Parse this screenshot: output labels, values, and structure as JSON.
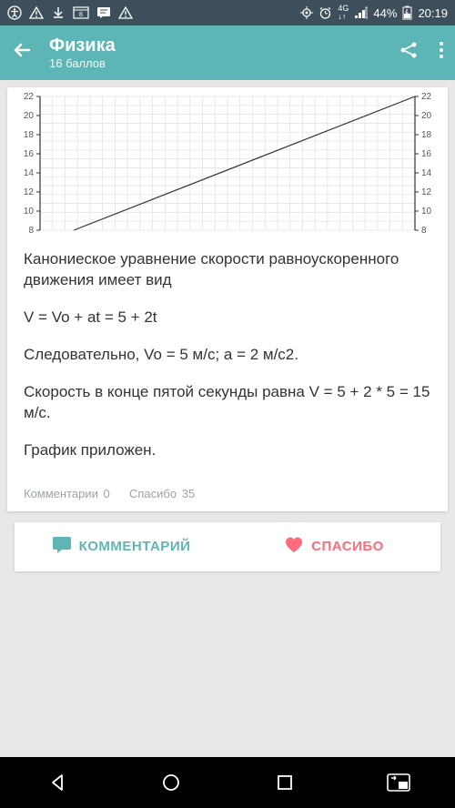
{
  "status": {
    "battery": "44%",
    "time": "20:19",
    "network": "4G"
  },
  "header": {
    "title": "Физика",
    "subtitle": "16 баллов"
  },
  "chart": {
    "type": "line",
    "ylim": [
      8,
      22
    ],
    "yticks_left": [
      22,
      20,
      18,
      16,
      14,
      12,
      10,
      8
    ],
    "yticks_right": [
      22,
      20,
      18,
      16,
      14,
      12,
      10,
      8
    ],
    "line_start": [
      0.09,
      8
    ],
    "line_end": [
      1.0,
      22
    ],
    "grid_color": "#e0e0e0",
    "axis_color": "#333333",
    "line_color": "#333333",
    "background": "#ffffff",
    "tick_fontsize": 10,
    "tick_color": "#555555"
  },
  "answer": {
    "p1": "Канониеское уравнение скорости равноускоренного движения имеет вид",
    "p2": "V = Vo + at = 5 + 2t",
    "p3": "Следовательно, Vo = 5 м/с; a = 2 м/с2.",
    "p4": "Скорость в конце пятой секунды равна V = 5 + 2 * 5 = 15 м/с.",
    "p5": "График приложен."
  },
  "meta": {
    "comments_label": "Комментарии",
    "comments_count": "0",
    "thanks_label": "Спасибо",
    "thanks_count": "35"
  },
  "actions": {
    "comment": "КОММЕНТАРИЙ",
    "thanks": "СПАСИБО"
  }
}
